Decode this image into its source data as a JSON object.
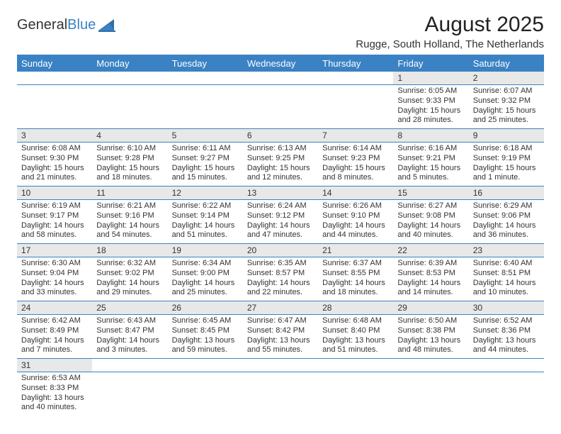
{
  "colors": {
    "brand_blue": "#3a82c4",
    "text": "#333333",
    "daynum_bg": "#e8e8e8",
    "bg": "#ffffff"
  },
  "logo": {
    "word1": "General",
    "word2": "Blue"
  },
  "title": "August 2025",
  "subtitle": "Rugge, South Holland, The Netherlands",
  "day_headers": [
    "Sunday",
    "Monday",
    "Tuesday",
    "Wednesday",
    "Thursday",
    "Friday",
    "Saturday"
  ],
  "weeks": [
    [
      {
        "n": "",
        "lines": [
          "",
          "",
          ""
        ]
      },
      {
        "n": "",
        "lines": [
          "",
          "",
          ""
        ]
      },
      {
        "n": "",
        "lines": [
          "",
          "",
          ""
        ]
      },
      {
        "n": "",
        "lines": [
          "",
          "",
          ""
        ]
      },
      {
        "n": "",
        "lines": [
          "",
          "",
          ""
        ]
      },
      {
        "n": "1",
        "lines": [
          "Sunrise: 6:05 AM",
          "Sunset: 9:33 PM",
          "Daylight: 15 hours and 28 minutes."
        ]
      },
      {
        "n": "2",
        "lines": [
          "Sunrise: 6:07 AM",
          "Sunset: 9:32 PM",
          "Daylight: 15 hours and 25 minutes."
        ]
      }
    ],
    [
      {
        "n": "3",
        "lines": [
          "Sunrise: 6:08 AM",
          "Sunset: 9:30 PM",
          "Daylight: 15 hours and 21 minutes."
        ]
      },
      {
        "n": "4",
        "lines": [
          "Sunrise: 6:10 AM",
          "Sunset: 9:28 PM",
          "Daylight: 15 hours and 18 minutes."
        ]
      },
      {
        "n": "5",
        "lines": [
          "Sunrise: 6:11 AM",
          "Sunset: 9:27 PM",
          "Daylight: 15 hours and 15 minutes."
        ]
      },
      {
        "n": "6",
        "lines": [
          "Sunrise: 6:13 AM",
          "Sunset: 9:25 PM",
          "Daylight: 15 hours and 12 minutes."
        ]
      },
      {
        "n": "7",
        "lines": [
          "Sunrise: 6:14 AM",
          "Sunset: 9:23 PM",
          "Daylight: 15 hours and 8 minutes."
        ]
      },
      {
        "n": "8",
        "lines": [
          "Sunrise: 6:16 AM",
          "Sunset: 9:21 PM",
          "Daylight: 15 hours and 5 minutes."
        ]
      },
      {
        "n": "9",
        "lines": [
          "Sunrise: 6:18 AM",
          "Sunset: 9:19 PM",
          "Daylight: 15 hours and 1 minute."
        ]
      }
    ],
    [
      {
        "n": "10",
        "lines": [
          "Sunrise: 6:19 AM",
          "Sunset: 9:17 PM",
          "Daylight: 14 hours and 58 minutes."
        ]
      },
      {
        "n": "11",
        "lines": [
          "Sunrise: 6:21 AM",
          "Sunset: 9:16 PM",
          "Daylight: 14 hours and 54 minutes."
        ]
      },
      {
        "n": "12",
        "lines": [
          "Sunrise: 6:22 AM",
          "Sunset: 9:14 PM",
          "Daylight: 14 hours and 51 minutes."
        ]
      },
      {
        "n": "13",
        "lines": [
          "Sunrise: 6:24 AM",
          "Sunset: 9:12 PM",
          "Daylight: 14 hours and 47 minutes."
        ]
      },
      {
        "n": "14",
        "lines": [
          "Sunrise: 6:26 AM",
          "Sunset: 9:10 PM",
          "Daylight: 14 hours and 44 minutes."
        ]
      },
      {
        "n": "15",
        "lines": [
          "Sunrise: 6:27 AM",
          "Sunset: 9:08 PM",
          "Daylight: 14 hours and 40 minutes."
        ]
      },
      {
        "n": "16",
        "lines": [
          "Sunrise: 6:29 AM",
          "Sunset: 9:06 PM",
          "Daylight: 14 hours and 36 minutes."
        ]
      }
    ],
    [
      {
        "n": "17",
        "lines": [
          "Sunrise: 6:30 AM",
          "Sunset: 9:04 PM",
          "Daylight: 14 hours and 33 minutes."
        ]
      },
      {
        "n": "18",
        "lines": [
          "Sunrise: 6:32 AM",
          "Sunset: 9:02 PM",
          "Daylight: 14 hours and 29 minutes."
        ]
      },
      {
        "n": "19",
        "lines": [
          "Sunrise: 6:34 AM",
          "Sunset: 9:00 PM",
          "Daylight: 14 hours and 25 minutes."
        ]
      },
      {
        "n": "20",
        "lines": [
          "Sunrise: 6:35 AM",
          "Sunset: 8:57 PM",
          "Daylight: 14 hours and 22 minutes."
        ]
      },
      {
        "n": "21",
        "lines": [
          "Sunrise: 6:37 AM",
          "Sunset: 8:55 PM",
          "Daylight: 14 hours and 18 minutes."
        ]
      },
      {
        "n": "22",
        "lines": [
          "Sunrise: 6:39 AM",
          "Sunset: 8:53 PM",
          "Daylight: 14 hours and 14 minutes."
        ]
      },
      {
        "n": "23",
        "lines": [
          "Sunrise: 6:40 AM",
          "Sunset: 8:51 PM",
          "Daylight: 14 hours and 10 minutes."
        ]
      }
    ],
    [
      {
        "n": "24",
        "lines": [
          "Sunrise: 6:42 AM",
          "Sunset: 8:49 PM",
          "Daylight: 14 hours and 7 minutes."
        ]
      },
      {
        "n": "25",
        "lines": [
          "Sunrise: 6:43 AM",
          "Sunset: 8:47 PM",
          "Daylight: 14 hours and 3 minutes."
        ]
      },
      {
        "n": "26",
        "lines": [
          "Sunrise: 6:45 AM",
          "Sunset: 8:45 PM",
          "Daylight: 13 hours and 59 minutes."
        ]
      },
      {
        "n": "27",
        "lines": [
          "Sunrise: 6:47 AM",
          "Sunset: 8:42 PM",
          "Daylight: 13 hours and 55 minutes."
        ]
      },
      {
        "n": "28",
        "lines": [
          "Sunrise: 6:48 AM",
          "Sunset: 8:40 PM",
          "Daylight: 13 hours and 51 minutes."
        ]
      },
      {
        "n": "29",
        "lines": [
          "Sunrise: 6:50 AM",
          "Sunset: 8:38 PM",
          "Daylight: 13 hours and 48 minutes."
        ]
      },
      {
        "n": "30",
        "lines": [
          "Sunrise: 6:52 AM",
          "Sunset: 8:36 PM",
          "Daylight: 13 hours and 44 minutes."
        ]
      }
    ],
    [
      {
        "n": "31",
        "lines": [
          "Sunrise: 6:53 AM",
          "Sunset: 8:33 PM",
          "Daylight: 13 hours and 40 minutes."
        ]
      },
      {
        "n": "",
        "lines": [
          "",
          "",
          ""
        ]
      },
      {
        "n": "",
        "lines": [
          "",
          "",
          ""
        ]
      },
      {
        "n": "",
        "lines": [
          "",
          "",
          ""
        ]
      },
      {
        "n": "",
        "lines": [
          "",
          "",
          ""
        ]
      },
      {
        "n": "",
        "lines": [
          "",
          "",
          ""
        ]
      },
      {
        "n": "",
        "lines": [
          "",
          "",
          ""
        ]
      }
    ]
  ]
}
